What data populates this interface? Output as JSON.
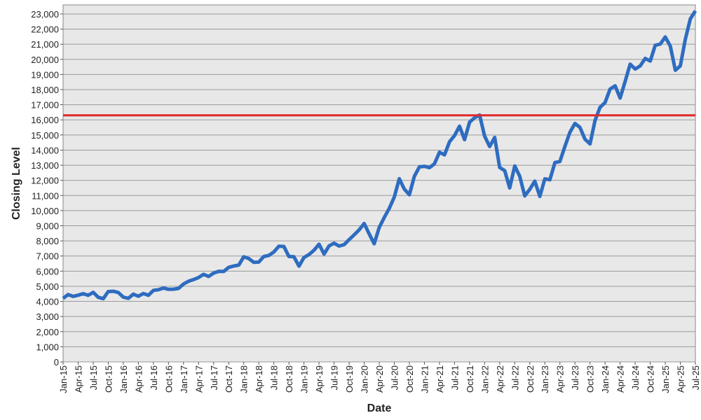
{
  "chart_data": {
    "type": "line",
    "x_label": "Date",
    "y_label": "Closing Level",
    "categories": [
      "Jan-15",
      null,
      null,
      "Apr-15",
      null,
      null,
      "Jul-15",
      null,
      null,
      "Oct-15",
      null,
      null,
      "Jan-16",
      null,
      null,
      "Apr-16",
      null,
      null,
      "Jul-16",
      null,
      null,
      "Oct-16",
      null,
      null,
      "Jan-17",
      null,
      null,
      "Apr-17",
      null,
      null,
      "Jul-17",
      null,
      null,
      "Oct-17",
      null,
      null,
      "Jan-18",
      null,
      null,
      "Apr-18",
      null,
      null,
      "Jul-18",
      null,
      null,
      "Oct-18",
      null,
      null,
      "Jan-19",
      null,
      null,
      "Apr-19",
      null,
      null,
      "Jul-19",
      null,
      null,
      "Oct-19",
      null,
      null,
      "Jan-20",
      null,
      null,
      "Apr-20",
      null,
      null,
      "Jul-20",
      null,
      null,
      "Oct-20",
      null,
      null,
      "Jan-21",
      null,
      null,
      "Apr-21",
      null,
      null,
      "Jul-21",
      null,
      null,
      "Oct-21",
      null,
      null,
      "Jan-22",
      null,
      null,
      "Apr-22",
      null,
      null,
      "Jul-22",
      null,
      null,
      "Oct-22",
      null,
      null,
      "Jan-23",
      null,
      null,
      "Apr-23",
      null,
      null,
      "Jul-23",
      null,
      null,
      "Oct-23",
      null,
      null,
      "Jan-24",
      null,
      null,
      "Apr-24",
      null,
      null,
      "Jul-24",
      null,
      null,
      "Oct-24",
      null,
      null,
      "Jan-25",
      null,
      null,
      "Apr-25",
      null,
      null,
      "Jul-25"
    ],
    "series": [
      {
        "color": "#2e6cc0",
        "values": [
          4200,
          4450,
          4330,
          4410,
          4510,
          4400,
          4600,
          4270,
          4180,
          4650,
          4670,
          4590,
          4280,
          4200,
          4480,
          4340,
          4520,
          4400,
          4730,
          4770,
          4880,
          4800,
          4810,
          4860,
          5150,
          5330,
          5440,
          5580,
          5790,
          5650,
          5870,
          5990,
          5980,
          6250,
          6340,
          6400,
          6950,
          6830,
          6580,
          6600,
          6970,
          7040,
          7270,
          7650,
          7630,
          6970,
          6950,
          6330,
          6900,
          7100,
          7380,
          7780,
          7130,
          7670,
          7850,
          7660,
          7750,
          8080,
          8400,
          8730,
          9150,
          8460,
          7810,
          8890,
          9550,
          10150,
          10900,
          12110,
          11420,
          11050,
          12270,
          12890,
          12930,
          12840,
          13090,
          13860,
          13690,
          14550,
          14960,
          15580,
          14690,
          15850,
          16140,
          16320,
          14930,
          14240,
          14840,
          12850,
          12640,
          11500,
          12950,
          12270,
          10970,
          11410,
          11950,
          10940,
          12100,
          12040,
          13180,
          13250,
          14250,
          15180,
          15760,
          15500,
          14720,
          14410,
          15950,
          16830,
          17140,
          18040,
          18250,
          17440,
          18540,
          19680,
          19360,
          19570,
          20060,
          19890,
          20930,
          21010,
          21480,
          20880,
          19280,
          19570,
          21340,
          22680,
          23200
        ]
      }
    ],
    "reference_line": {
      "value": 16300,
      "color": "#e02828"
    },
    "ylim": [
      0,
      23600
    ],
    "yticks": [
      0,
      {
        "value": 1000,
        "label": "1,000"
      },
      {
        "value": 2000,
        "label": "2,000"
      },
      {
        "value": 3000,
        "label": "3,000"
      },
      {
        "value": 4000,
        "label": "4,000"
      },
      {
        "value": 5000,
        "label": "5,000"
      },
      {
        "value": 6000,
        "label": "6,000"
      },
      {
        "value": 7000,
        "label": "7,000"
      },
      {
        "value": 8000,
        "label": "8,000"
      },
      {
        "value": 9000,
        "label": "9,000"
      },
      {
        "value": 10000,
        "label": "10,000"
      },
      {
        "value": 11000,
        "label": "11,000"
      },
      {
        "value": 12000,
        "label": "12,000"
      },
      {
        "value": 13000,
        "label": "13,000"
      },
      {
        "value": 14000,
        "label": "14,000"
      },
      {
        "value": 15000,
        "label": "15,000"
      },
      {
        "value": 16000,
        "label": "16,000"
      },
      {
        "value": 17000,
        "label": "17,000"
      },
      {
        "value": 18000,
        "label": "18,000"
      },
      {
        "value": 19000,
        "label": "19,000"
      },
      {
        "value": 20000,
        "label": "20,000"
      },
      {
        "value": 21000,
        "label": "21,000"
      },
      {
        "value": 22000,
        "label": "22,000"
      },
      {
        "value": 23000,
        "label": "23,000"
      }
    ],
    "grid": true
  }
}
